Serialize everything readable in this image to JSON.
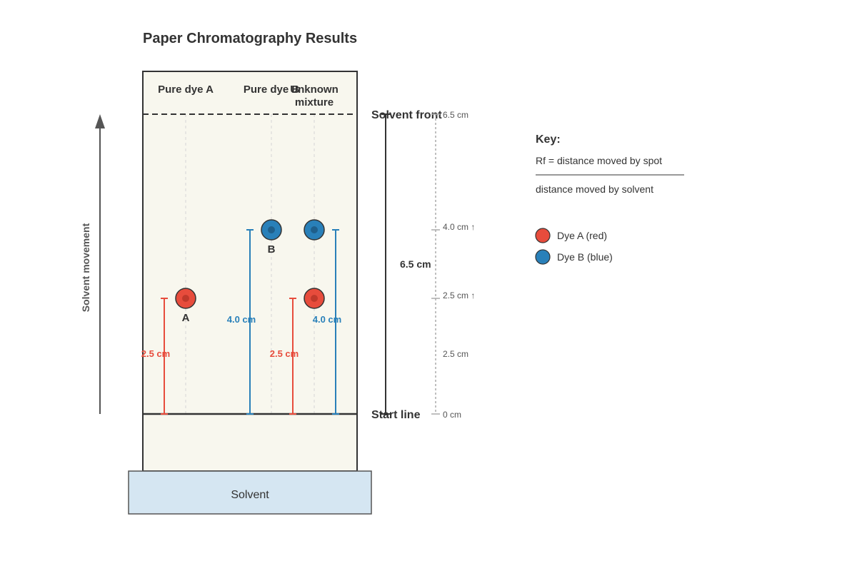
{
  "title": "Paper Chromatography Results",
  "columns": {
    "dye_a": "Pure dye A",
    "dye_b": "Pure dye B",
    "unknown_line1": "Unknown",
    "unknown_line2": "mixture"
  },
  "lines": {
    "solvent_front": "Solvent front",
    "start_line": "Start line",
    "solvent": "Solvent",
    "solvent_movement": "Solvent movement"
  },
  "spots": {
    "dye_a_label": "A",
    "dye_b_label": "B"
  },
  "measurements": {
    "dye_a_distance": "2.5 cm",
    "dye_b_distance": "4.0 cm",
    "mixture_red_distance": "2.5 cm",
    "mixture_blue_distance": "4.0 cm",
    "solvent_distance": "6.5 cm"
  },
  "scale": {
    "top": "6.5 cm",
    "blue_mark": "4.0 cm ↑",
    "red_mark": "2.5 cm ↑",
    "mid": "2.5 cm",
    "zero": "0 cm"
  },
  "key": {
    "title": "Key:",
    "numerator": "Rf = distance moved by spot",
    "denominator": "distance moved by solvent",
    "dye_a": "Dye A (red)",
    "dye_b": "Dye B (blue)"
  },
  "colors": {
    "dye_a": "#e74c3c",
    "dye_b": "#2980b9",
    "paper": "#f8f7ee",
    "solvent": "#d5e6f2"
  }
}
